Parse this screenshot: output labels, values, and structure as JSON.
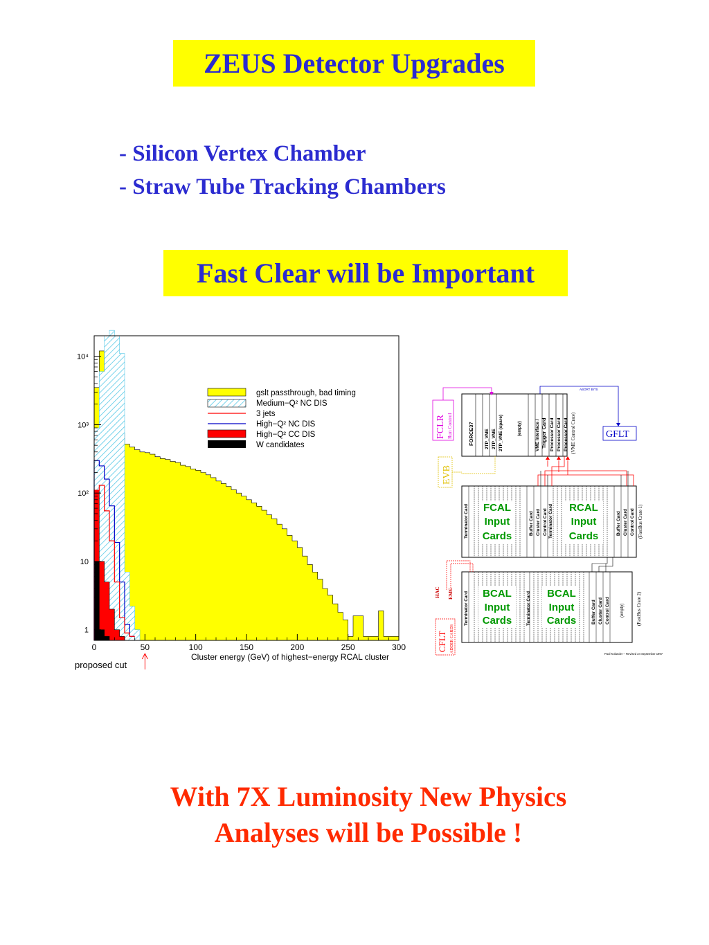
{
  "slide": {
    "title": "ZEUS Detector Upgrades",
    "bullets": [
      "- Silicon Vertex Chamber",
      "- Straw Tube Tracking Chambers"
    ],
    "highlight": "Fast Clear will be Important",
    "conclusion": [
      "With 7X Luminosity New Physics",
      "Analyses will be Possible !"
    ],
    "colors": {
      "title_text": "#2b2bd0",
      "highlight_bg": "#ffff00",
      "conclusion_text": "#ff2a00"
    }
  },
  "chart_data": {
    "type": "histogram",
    "xlabel": "Cluster energy (GeV) of highest−energy RCAL cluster",
    "ylabel": "",
    "xlim": [
      0,
      300
    ],
    "ylim": [
      0.7,
      20000
    ],
    "log_y": true,
    "x_ticks": [
      "0",
      "50",
      "100",
      "150",
      "200",
      "250",
      "300"
    ],
    "y_ticks": [
      "1",
      "10",
      "10²",
      "10³",
      "10⁴"
    ],
    "legend_position": "top-right",
    "annotation": "proposed cut",
    "annotation_x": 50,
    "bin_width": 5,
    "series": [
      {
        "name": "gslt passthrough, bad timing",
        "style": "fill",
        "color": "#ffff00",
        "x": [
          0,
          5,
          10,
          15,
          20,
          25,
          30,
          35,
          40,
          45,
          50,
          55,
          60,
          65,
          70,
          75,
          80,
          85,
          90,
          95,
          100,
          105,
          110,
          115,
          120,
          125,
          130,
          135,
          140,
          145,
          150,
          155,
          160,
          165,
          170,
          175,
          180,
          185,
          190,
          195,
          200,
          205,
          210,
          215,
          220,
          225,
          230,
          235,
          240,
          245,
          250,
          255,
          260,
          265,
          270,
          275,
          280,
          285,
          290,
          295
        ],
        "values": [
          3500,
          12000,
          3000,
          1500,
          1100,
          750,
          520,
          470,
          430,
          400,
          390,
          370,
          340,
          320,
          310,
          290,
          280,
          255,
          245,
          225,
          215,
          200,
          185,
          168,
          150,
          138,
          125,
          112,
          100,
          90,
          80,
          72,
          64,
          56,
          48,
          42,
          35,
          30,
          24,
          20,
          16,
          12,
          9,
          7,
          5.5,
          4,
          3.2,
          2.4,
          1.8,
          1.4,
          0.8,
          1.6,
          1.6,
          0.8,
          0.8,
          0.8,
          1.9,
          0.8,
          0.8,
          0.8
        ]
      },
      {
        "name": "Medium−Q² NC DIS",
        "style": "hatch",
        "color": "#55c8e6",
        "x": [
          0,
          5,
          10,
          15,
          20,
          25,
          30,
          35,
          40
        ],
        "values": [
          900,
          6000,
          20000,
          24000,
          20000,
          11000,
          7,
          2.2,
          1
        ]
      },
      {
        "name": "3 jets",
        "style": "line",
        "color": "#ff0000",
        "x": [
          0,
          5,
          10,
          15,
          20,
          25,
          30,
          35
        ],
        "values": [
          110,
          130,
          55,
          20,
          5,
          1.5,
          0.9,
          0.8
        ]
      },
      {
        "name": "High−Q² NC DIS",
        "style": "line",
        "color": "#0000c8",
        "x": [
          0,
          5,
          10,
          15,
          20,
          25,
          30,
          35
        ],
        "values": [
          300,
          250,
          160,
          65,
          19,
          5,
          1.2,
          0.8
        ]
      },
      {
        "name": "High−Q² CC DIS",
        "style": "fill",
        "color": "#ff0000",
        "x": [
          0,
          5,
          10,
          15,
          20,
          25
        ],
        "values": [
          110,
          10,
          5,
          2,
          1,
          0.8
        ]
      },
      {
        "name": "W candidates",
        "style": "fill",
        "color": "#000000",
        "x": [
          0,
          5,
          10
        ],
        "values": [
          10,
          1,
          0.8
        ]
      }
    ]
  },
  "crate_diagram": {
    "top_crate": [
      "FORCE37",
      "2TP_VME",
      "2TP_VME",
      "2TP_VME (spare)",
      "(empty)",
      "VME Interface /",
      "Trigger Card",
      "Processor Card",
      "Processor Card",
      "Processor Card"
    ],
    "top_crate_caption": "(VME Control Crate)",
    "mid_crate_caption": "(FastBus Crate 1)",
    "bot_crate_caption": "(FastBus Crate 2)",
    "mid_crate": [
      "Terminator Card",
      "FCAL Input Cards",
      "Buffer Card",
      "Cluster Card",
      "Control Card",
      "Terminator Card",
      "RCAL Input Cards",
      "Buffer Card",
      "Cluster Card",
      "Control Card"
    ],
    "bot_crate": [
      "Terminator Card",
      "BCAL Input Cards",
      "Terminator Card",
      "BCAL Input Cards",
      "Buffer Card",
      "Cluster Card",
      "Control Card",
      "(empty)"
    ],
    "side_labels": {
      "fclr": "FCLR",
      "run_control": "Run Control",
      "abort": "ABORT BITS",
      "gflt": "GFLT",
      "evb": "EVB",
      "cflt": "CFLT",
      "adder": "ADDER CARDS",
      "hac": "HAC",
      "emc": "EMC"
    },
    "credit": "Paul Kolander – Revised 24 September 1997",
    "colors": {
      "input_cards": "#009900",
      "fclr": "#e000e0",
      "gflt": "#0000c8",
      "evb": "#e0c000",
      "cflt": "#ff0000"
    }
  }
}
